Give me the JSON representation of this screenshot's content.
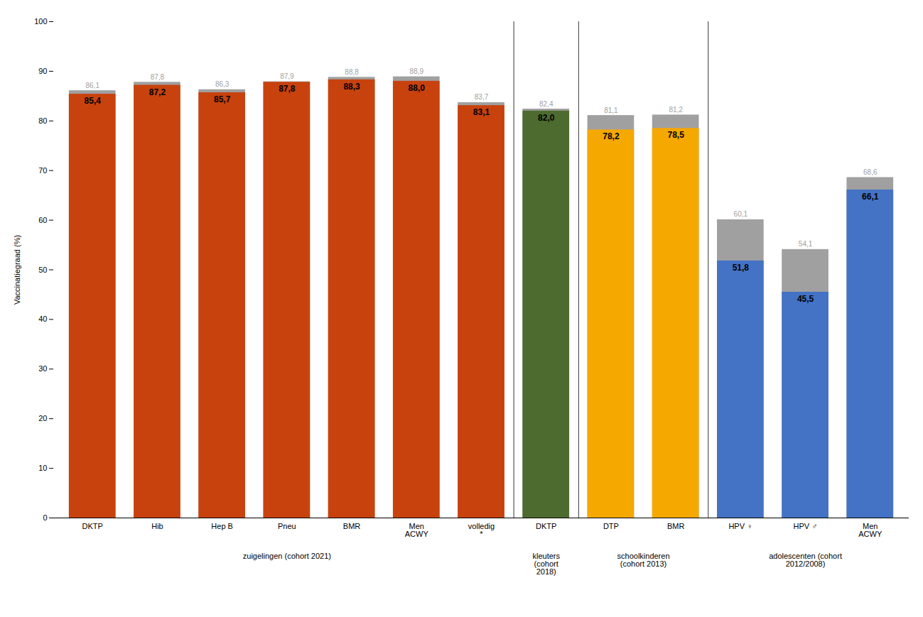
{
  "chart_data": {
    "type": "bar",
    "categories": [
      "DKTP",
      "Hib",
      "Hep B",
      "Pneu",
      "BMR",
      "Men\nACWY",
      "volledig\n*",
      "DKTP",
      "DTP",
      "BMR",
      "HPV ♀",
      "HPV ♂",
      "Men\nACWY"
    ],
    "series": [
      {
        "color": "#A0A0A0",
        "values": [
          86.1,
          87.8,
          86.3,
          87.9,
          88.8,
          88.9,
          83.7,
          82.4,
          81.1,
          81.2,
          60.1,
          54.1,
          68.6
        ],
        "value_labels": [
          "86,1",
          "87,8",
          "86,3",
          "87,9",
          "88,8",
          "88,9",
          "83,7",
          "82,4",
          "81,1",
          "81,2",
          "60,1",
          "54,1",
          "68,6"
        ]
      },
      {
        "colors": [
          "#C8420E",
          "#C8420E",
          "#C8420E",
          "#C8420E",
          "#C8420E",
          "#C8420E",
          "#C8420E",
          "#4D6B2F",
          "#F5A800",
          "#F5A800",
          "#4472C4",
          "#4472C4",
          "#4472C4"
        ],
        "values": [
          85.4,
          87.2,
          85.7,
          87.8,
          88.3,
          88.0,
          83.1,
          82.0,
          78.2,
          78.5,
          51.8,
          45.5,
          66.1
        ],
        "value_labels": [
          "85,4",
          "87,2",
          "85,7",
          "87,8",
          "88,3",
          "88,0",
          "83,1",
          "82,0",
          "78,2",
          "78,5",
          "51,8",
          "45,5",
          "66,1"
        ]
      }
    ],
    "ylabel": "Vaccinatiegraad (%)",
    "ylim": [
      0,
      100
    ],
    "yticks": [
      0,
      10,
      20,
      30,
      40,
      50,
      60,
      70,
      80,
      90,
      100
    ],
    "grid": false,
    "data_labels": true,
    "annotations": [
      {
        "text": "zuigelingen (cohort 2021)",
        "x": [
          0,
          6
        ]
      },
      {
        "text": "kleuters\n(cohort\n2018)",
        "x": [
          7,
          7
        ]
      },
      {
        "text": "schoolkinderen\n(cohort 2013)",
        "x": [
          8,
          9
        ]
      },
      {
        "text": "adolescenten (cohort\n2012/2008)",
        "x": [
          10,
          12
        ]
      }
    ]
  }
}
